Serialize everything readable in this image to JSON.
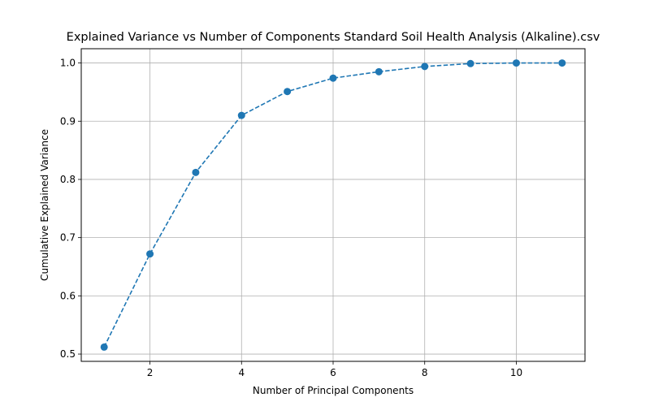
{
  "chart_data": {
    "type": "line",
    "title": "Explained Variance vs Number of Components Standard Soil Health Analysis (Alkaline).csv",
    "xlabel": "Number of Principal Components",
    "ylabel": "Cumulative Explained Variance",
    "xlim": [
      0.5,
      11.5
    ],
    "ylim": [
      0.4875,
      1.0245
    ],
    "xticks": [
      2,
      4,
      6,
      8,
      10
    ],
    "yticks": [
      0.5,
      0.6,
      0.7,
      0.8,
      0.9,
      1.0
    ],
    "xtick_labels": [
      "2",
      "4",
      "6",
      "8",
      "10"
    ],
    "ytick_labels": [
      "0.5",
      "0.6",
      "0.7",
      "0.8",
      "0.9",
      "1.0"
    ],
    "grid": true,
    "line_style": "dashed",
    "marker": "circle",
    "color": "#1f77b4",
    "x": [
      1,
      2,
      3,
      4,
      5,
      6,
      7,
      8,
      9,
      10,
      11
    ],
    "series": [
      {
        "values": [
          0.512,
          0.672,
          0.812,
          0.91,
          0.951,
          0.974,
          0.985,
          0.994,
          0.999,
          1.0,
          1.0
        ]
      }
    ]
  }
}
